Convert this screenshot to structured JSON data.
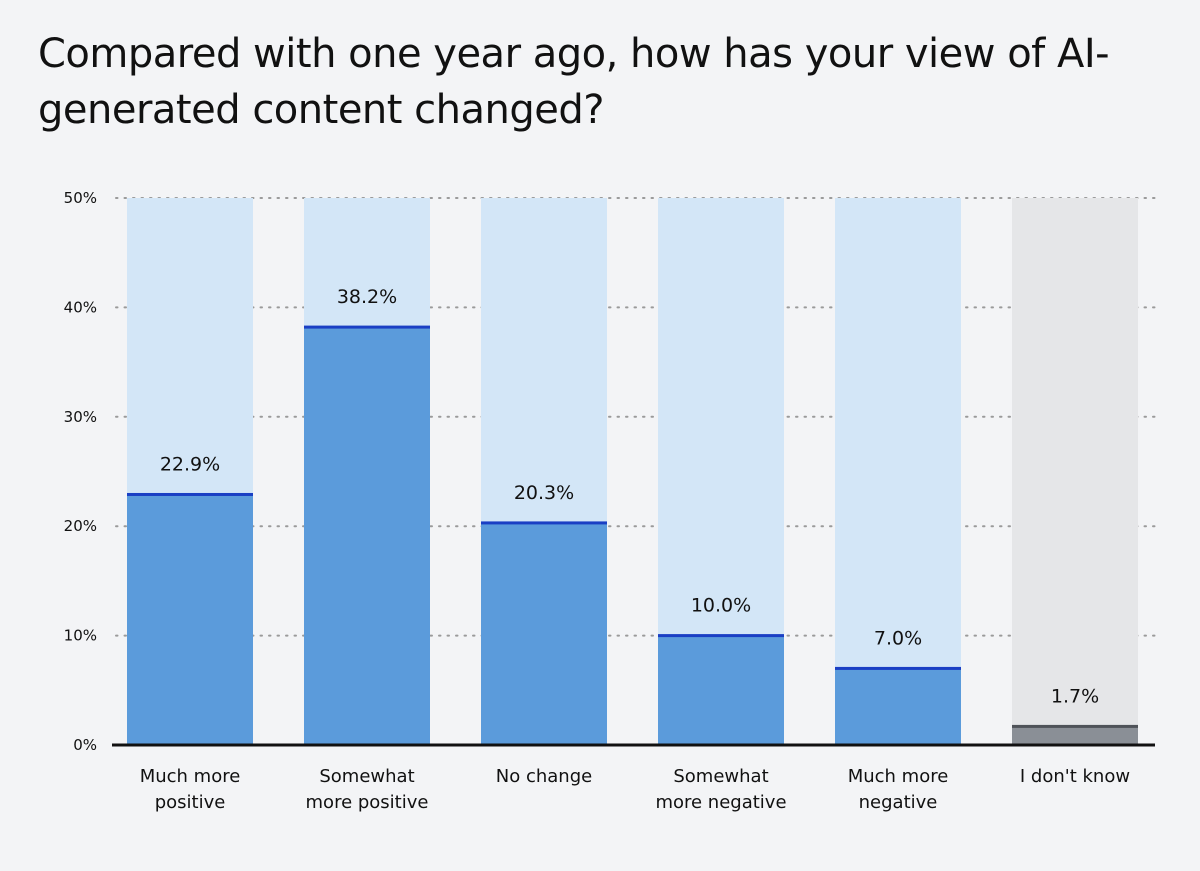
{
  "chart_data": {
    "type": "bar",
    "title": "Compared with one year ago, how has your view of AI-generated content changed?",
    "categories": [
      [
        "Much more",
        "positive"
      ],
      [
        "Somewhat",
        "more positive"
      ],
      [
        "No change"
      ],
      [
        "Somewhat",
        "more negative"
      ],
      [
        "Much more",
        "negative"
      ],
      [
        "I don't know"
      ]
    ],
    "values": [
      22.9,
      38.2,
      20.3,
      10.0,
      7.0,
      1.7
    ],
    "value_labels": [
      "22.9%",
      "38.2%",
      "20.3%",
      "10.0%",
      "7.0%",
      "1.7%"
    ],
    "ylim": [
      0,
      50
    ],
    "yticks": [
      0,
      10,
      20,
      30,
      40,
      50
    ],
    "ytick_labels": [
      "0%",
      "10%",
      "20%",
      "30%",
      "40%",
      "50%"
    ],
    "xlabel": "",
    "ylabel": "",
    "grid": "horizontal dotted",
    "legend": "none",
    "colors": {
      "bar_fill": "#5b9bdb",
      "bar_track": "#d3e6f7",
      "bar_cap": "#1a3fc4",
      "neutral_fill": "#8a8f96",
      "neutral_track": "#e5e6e8",
      "neutral_cap": "#4f5359",
      "grid": "#9a9a9a",
      "axis": "#111111"
    },
    "neutral_categories": [
      5
    ]
  }
}
